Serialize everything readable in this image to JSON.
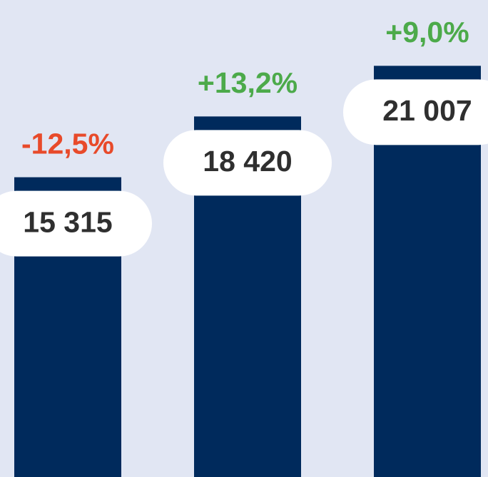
{
  "chart_data": {
    "type": "bar",
    "categories": [
      null,
      null,
      null
    ],
    "values": [
      15315,
      18420,
      21007
    ],
    "value_labels": [
      "15 315",
      "18 420",
      "21 007"
    ],
    "color": "#002a5c",
    "changes": [
      -12.5,
      13.2,
      9.0
    ],
    "change_labels": [
      "-12,5%",
      "+13,2%",
      "+9,0%"
    ],
    "positive_color": "#4caa4a",
    "negative_color": "#e84a2a",
    "ylim": [
      0,
      24370
    ]
  }
}
